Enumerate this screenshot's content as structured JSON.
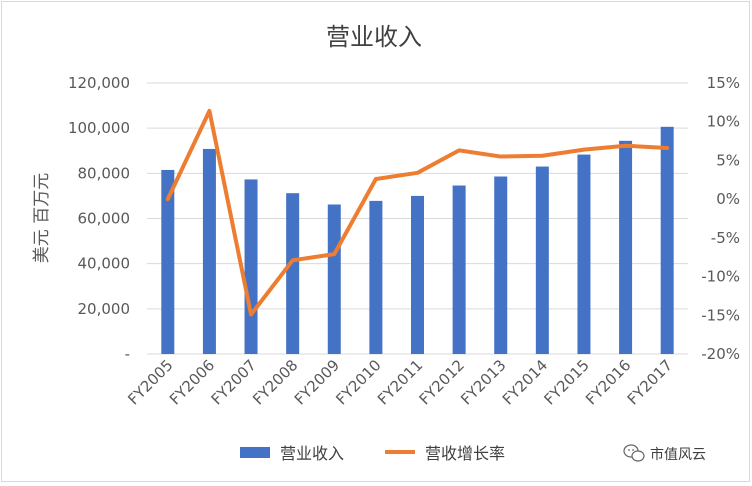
{
  "chart_data": {
    "type": "bar",
    "title": "营业收入",
    "ylabel": "美元 百万元",
    "xlabel": "",
    "categories": [
      "FY2005",
      "FY2006",
      "FY2007",
      "FY2008",
      "FY2009",
      "FY2010",
      "FY2011",
      "FY2012",
      "FY2013",
      "FY2014",
      "FY2015",
      "FY2016",
      "FY2017"
    ],
    "series": [
      {
        "name": "营业收入",
        "type": "bar",
        "axis": "left",
        "color": "#4472c4",
        "values": [
          81500,
          90800,
          77300,
          71200,
          66200,
          67800,
          70000,
          74600,
          78600,
          83000,
          88300,
          94400,
          100600
        ]
      },
      {
        "name": "营收增长率",
        "type": "line",
        "axis": "right",
        "color": "#ed7d31",
        "values": [
          0.0,
          11.4,
          -14.9,
          -7.9,
          -7.1,
          2.6,
          3.4,
          6.3,
          5.5,
          5.6,
          6.4,
          6.9,
          6.6
        ]
      }
    ],
    "ylim": [
      0,
      120000
    ],
    "y_ticks": [
      "-",
      "20,000",
      "40,000",
      "60,000",
      "80,000",
      "100,000",
      "120,000"
    ],
    "y2lim": [
      -20,
      15
    ],
    "y2_ticks": [
      "-20%",
      "-15%",
      "-10%",
      "-5%",
      "0%",
      "5%",
      "10%",
      "15%"
    ],
    "grid": true,
    "legend": "bottom"
  },
  "watermark": {
    "text": "市值风云",
    "icon": "wechat-icon"
  }
}
